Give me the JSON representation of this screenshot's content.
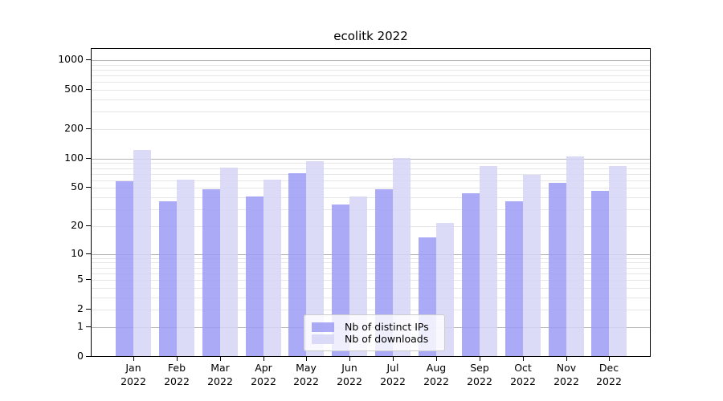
{
  "figure": {
    "background": "#ffffff"
  },
  "chart_data": {
    "type": "bar",
    "title": "ecolitk 2022",
    "categories": [
      "Jan",
      "Feb",
      "Mar",
      "Apr",
      "May",
      "Jun",
      "Jul",
      "Aug",
      "Sep",
      "Oct",
      "Nov",
      "Dec"
    ],
    "year_label": "2022",
    "series": [
      {
        "name": "Nb of distinct IPs",
        "values": [
          58,
          36,
          48,
          40,
          70,
          33,
          48,
          15,
          43,
          36,
          55,
          46
        ]
      },
      {
        "name": "Nb of downloads",
        "values": [
          120,
          60,
          80,
          60,
          93,
          40,
          100,
          21,
          83,
          67,
          104,
          83
        ]
      }
    ],
    "y_ticks": [
      0,
      1,
      2,
      5,
      10,
      20,
      50,
      100,
      200,
      500,
      1000
    ],
    "y_scale": "log10(value+1), zero at baseline",
    "ylim": [
      0,
      1300
    ],
    "xlabel": "",
    "ylabel": "",
    "grid": "horizontal major lines at powers of 10, minor lines at 2-9 per decade",
    "legend_position": "inside, lower center"
  },
  "colors": {
    "ips": "#9c9cf5",
    "downloads": "#d5d5f7",
    "bar_alpha": 0.86,
    "grid_major": "#b3b3b3",
    "grid_minor": "#e6e6e6",
    "axis": "#000000",
    "legend_border": "#cccccc"
  }
}
